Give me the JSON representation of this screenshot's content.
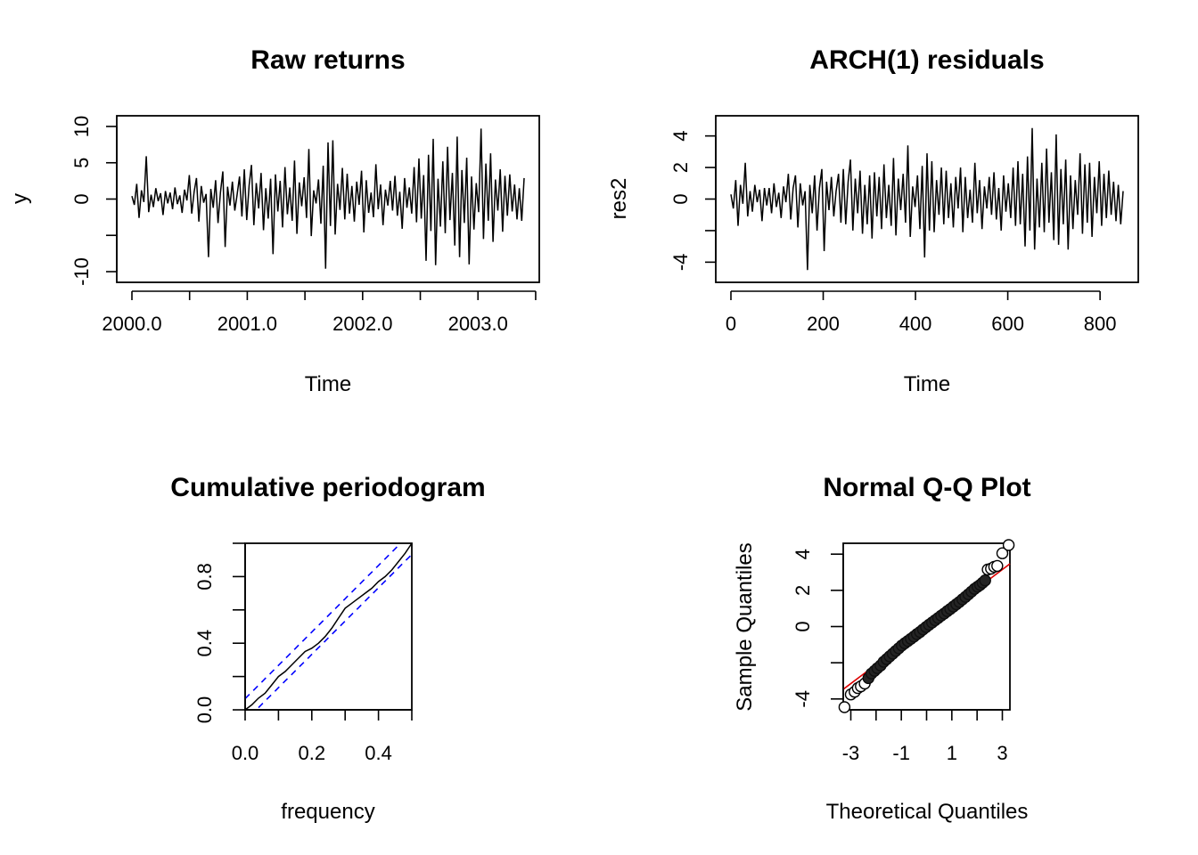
{
  "chart_data": [
    {
      "id": "raw",
      "type": "line",
      "title": "Raw returns",
      "xlabel": "Time",
      "ylabel": "y",
      "xlim": [
        2000.0,
        2003.4
      ],
      "ylim": [
        -10,
        10
      ],
      "x_ticks": [
        2000.0,
        2000.5,
        2001.0,
        2001.5,
        2002.0,
        2002.5,
        2003.0,
        2003.5
      ],
      "x_tick_labels": [
        "2000.0",
        "",
        "2001.0",
        "",
        "2002.0",
        "",
        "2003.0",
        ""
      ],
      "y_ticks": [
        -10,
        -5,
        0,
        5,
        10
      ],
      "y_tick_labels": [
        "-10",
        "",
        "0",
        "5",
        "10"
      ],
      "grid": false,
      "series": [
        {
          "values": [
            0.4,
            -0.8,
            2.1,
            -2.6,
            1.2,
            -0.4,
            5.9,
            -1.8,
            0.6,
            -1.1,
            1.5,
            -0.3,
            0.8,
            -2.2,
            1.1,
            -0.6,
            0.9,
            -1.4,
            1.6,
            -0.7,
            0.5,
            -1.9,
            1.3,
            -0.2,
            3.3,
            -2.0,
            1.0,
            2.9,
            -3.1,
            1.8,
            -0.5,
            0.7,
            -8.0,
            1.4,
            -1.2,
            2.6,
            -3.3,
            0.9,
            3.8,
            -6.6,
            1.7,
            -0.9,
            2.4,
            -1.6,
            0.6,
            3.1,
            -2.4,
            4.1,
            -2.9,
            1.9,
            4.7,
            -3.6,
            2.2,
            -1.3,
            3.6,
            -4.3,
            1.5,
            -2.7,
            2.8,
            -7.6,
            3.4,
            -1.7,
            2.5,
            -3.9,
            4.4,
            -2.1,
            1.6,
            -3.0,
            5.3,
            -4.8,
            2.3,
            -1.0,
            3.0,
            -2.6,
            6.9,
            -5.1,
            1.2,
            -0.6,
            2.7,
            -3.4,
            4.6,
            -9.6,
            7.8,
            -3.7,
            8.1,
            -4.9,
            2.1,
            -1.5,
            4.3,
            -2.8,
            3.5,
            -2.0,
            1.8,
            -3.1,
            2.4,
            -0.8,
            3.9,
            -4.6,
            2.6,
            -1.9,
            0.9,
            -2.5,
            4.8,
            -1.4,
            2.0,
            -3.6,
            1.3,
            -0.9,
            2.5,
            -1.6,
            3.2,
            -2.3,
            1.0,
            -4.1,
            2.9,
            -1.2,
            1.6,
            -2.0,
            4.4,
            -3.2,
            5.6,
            -2.7,
            3.3,
            -8.5,
            6.1,
            -4.4,
            8.3,
            -9.1,
            2.8,
            -3.8,
            5.2,
            -4.7,
            7.2,
            -2.9,
            3.6,
            -6.4,
            8.6,
            -8.0,
            4.0,
            -3.3,
            5.7,
            -9.0,
            3.1,
            -4.2,
            2.2,
            -1.8,
            9.7,
            -5.5,
            4.9,
            -3.0,
            6.3,
            -5.9,
            2.7,
            -1.6,
            4.1,
            -4.5,
            3.2,
            -2.3,
            3.4,
            -1.7,
            2.0,
            -2.8,
            1.5,
            -3.0,
            2.9
          ]
        }
      ]
    },
    {
      "id": "res2",
      "type": "line",
      "title": "ARCH(1) residuals",
      "xlabel": "Time",
      "ylabel": "res2",
      "xlim": [
        0,
        850
      ],
      "ylim": [
        -4.6,
        4.6
      ],
      "x_ticks": [
        0,
        200,
        400,
        600,
        800
      ],
      "x_tick_labels": [
        "0",
        "200",
        "400",
        "600",
        "800"
      ],
      "y_ticks": [
        -4,
        -2,
        0,
        2,
        4
      ],
      "y_tick_labels": [
        "-4",
        "",
        "0",
        "2",
        "4"
      ],
      "grid": false,
      "series": [
        {
          "values": [
            0.3,
            -0.6,
            1.2,
            -1.7,
            0.9,
            -0.3,
            2.3,
            -1.1,
            0.5,
            -0.8,
            0.9,
            -0.2,
            0.6,
            -1.4,
            0.7,
            -0.4,
            0.7,
            -0.9,
            1.0,
            -0.5,
            0.4,
            -1.2,
            0.8,
            -0.2,
            1.6,
            -1.3,
            0.7,
            1.5,
            -1.8,
            1.0,
            -0.4,
            0.5,
            -4.5,
            0.9,
            -0.9,
            1.5,
            -2.0,
            0.7,
            1.9,
            -3.3,
            1.1,
            -0.7,
            1.4,
            -1.1,
            0.5,
            1.6,
            -1.5,
            1.9,
            -1.6,
            1.1,
            2.5,
            -2.0,
            1.3,
            -0.9,
            1.8,
            -2.2,
            0.9,
            -1.6,
            1.5,
            -2.5,
            1.7,
            -1.1,
            1.4,
            -1.9,
            2.2,
            -1.2,
            0.9,
            -1.7,
            2.6,
            -2.3,
            1.3,
            -0.7,
            1.6,
            -1.5,
            3.4,
            -2.4,
            0.8,
            -0.5,
            1.5,
            -1.9,
            2.1,
            -3.7,
            2.9,
            -2.0,
            2.4,
            -2.1,
            1.2,
            -1.0,
            2.0,
            -1.6,
            1.8,
            -1.2,
            1.0,
            -1.8,
            1.4,
            -0.6,
            2.0,
            -2.1,
            1.4,
            -1.2,
            0.6,
            -1.5,
            2.3,
            -0.9,
            1.2,
            -1.9,
            0.8,
            -0.6,
            1.4,
            -1.0,
            1.7,
            -1.3,
            0.7,
            -2.0,
            1.5,
            -0.8,
            1.0,
            -1.2,
            2.0,
            -1.7,
            2.4,
            -1.6,
            1.6,
            -3.0,
            2.7,
            -2.0,
            4.5,
            -3.2,
            1.3,
            -1.8,
            2.3,
            -2.1,
            3.2,
            -1.5,
            1.7,
            -2.6,
            4.1,
            -2.9,
            1.9,
            -1.6,
            2.5,
            -3.2,
            1.5,
            -1.9,
            1.2,
            -1.0,
            2.9,
            -2.2,
            2.2,
            -1.5,
            2.3,
            -2.4,
            1.4,
            -0.9,
            2.4,
            -1.7,
            1.6,
            -1.2,
            1.8,
            -1.0,
            1.1,
            -1.4,
            0.9,
            -1.6,
            0.5
          ]
        }
      ]
    },
    {
      "id": "cpgram",
      "type": "line",
      "title": "Cumulative periodogram",
      "xlabel": "frequency",
      "ylabel": "",
      "xlim": [
        0,
        0.5
      ],
      "ylim": [
        0,
        1
      ],
      "x_ticks": [
        0,
        0.1,
        0.2,
        0.3,
        0.4,
        0.5
      ],
      "x_tick_labels": [
        "0.0",
        "",
        "0.2",
        "",
        "0.4",
        ""
      ],
      "y_ticks": [
        0,
        0.2,
        0.4,
        0.6,
        0.8,
        1.0
      ],
      "y_tick_labels": [
        "0.0",
        "",
        "0.4",
        "",
        "0.8",
        ""
      ],
      "grid": false,
      "band_offset": 0.067,
      "band_color": "#0000ff",
      "series": [
        {
          "x": [
            0.0,
            0.02,
            0.04,
            0.06,
            0.08,
            0.1,
            0.12,
            0.14,
            0.16,
            0.18,
            0.2,
            0.22,
            0.24,
            0.26,
            0.28,
            0.3,
            0.32,
            0.34,
            0.36,
            0.38,
            0.4,
            0.42,
            0.44,
            0.46,
            0.48,
            0.5
          ],
          "y": [
            0.0,
            0.03,
            0.07,
            0.1,
            0.15,
            0.2,
            0.23,
            0.27,
            0.31,
            0.35,
            0.37,
            0.4,
            0.44,
            0.49,
            0.55,
            0.61,
            0.64,
            0.67,
            0.7,
            0.73,
            0.77,
            0.8,
            0.84,
            0.89,
            0.94,
            1.0
          ]
        }
      ]
    },
    {
      "id": "qq",
      "type": "scatter",
      "title": "Normal Q-Q Plot",
      "xlabel": "Theoretical Quantiles",
      "ylabel": "Sample Quantiles",
      "xlim": [
        -3.3,
        3.3
      ],
      "ylim": [
        -4.6,
        4.6
      ],
      "x_ticks": [
        -3,
        -2,
        -1,
        0,
        1,
        2,
        3
      ],
      "x_tick_labels": [
        "-3",
        "",
        "-1",
        "",
        "1",
        "",
        "3"
      ],
      "y_ticks": [
        -4,
        -2,
        0,
        2,
        4
      ],
      "y_tick_labels": [
        "-4",
        "",
        "0",
        "2",
        "4"
      ],
      "grid": false,
      "ref_line": {
        "intercept": 0.0,
        "slope": 1.05,
        "color": "#dd0000"
      },
      "points": [
        [
          -3.25,
          -4.45
        ],
        [
          -3.0,
          -3.75
        ],
        [
          -2.85,
          -3.6
        ],
        [
          -2.72,
          -3.4
        ],
        [
          -2.6,
          -3.3
        ],
        [
          -2.45,
          -3.15
        ],
        [
          -2.3,
          -2.85
        ],
        [
          -2.18,
          -2.6
        ],
        [
          -2.06,
          -2.45
        ],
        [
          -1.95,
          -2.3
        ],
        [
          -1.82,
          -2.15
        ],
        [
          -1.7,
          -1.95
        ],
        [
          -1.58,
          -1.8
        ],
        [
          -1.46,
          -1.65
        ],
        [
          -1.34,
          -1.5
        ],
        [
          -1.22,
          -1.35
        ],
        [
          -1.1,
          -1.2
        ],
        [
          -0.98,
          -1.05
        ],
        [
          -0.86,
          -0.92
        ],
        [
          -0.74,
          -0.8
        ],
        [
          -0.62,
          -0.68
        ],
        [
          -0.5,
          -0.55
        ],
        [
          -0.38,
          -0.42
        ],
        [
          -0.26,
          -0.3
        ],
        [
          -0.14,
          -0.16
        ],
        [
          -0.02,
          -0.03
        ],
        [
          0.1,
          0.1
        ],
        [
          0.22,
          0.22
        ],
        [
          0.34,
          0.35
        ],
        [
          0.46,
          0.47
        ],
        [
          0.58,
          0.6
        ],
        [
          0.7,
          0.72
        ],
        [
          0.82,
          0.85
        ],
        [
          0.94,
          0.97
        ],
        [
          1.06,
          1.1
        ],
        [
          1.18,
          1.23
        ],
        [
          1.3,
          1.36
        ],
        [
          1.42,
          1.5
        ],
        [
          1.54,
          1.64
        ],
        [
          1.66,
          1.78
        ],
        [
          1.78,
          1.93
        ],
        [
          1.9,
          2.08
        ],
        [
          2.02,
          2.2
        ],
        [
          2.12,
          2.3
        ],
        [
          2.22,
          2.42
        ],
        [
          2.32,
          2.55
        ],
        [
          2.42,
          3.15
        ],
        [
          2.55,
          3.2
        ],
        [
          2.68,
          3.3
        ],
        [
          2.8,
          3.35
        ],
        [
          3.0,
          4.05
        ],
        [
          3.25,
          4.5
        ]
      ]
    }
  ]
}
